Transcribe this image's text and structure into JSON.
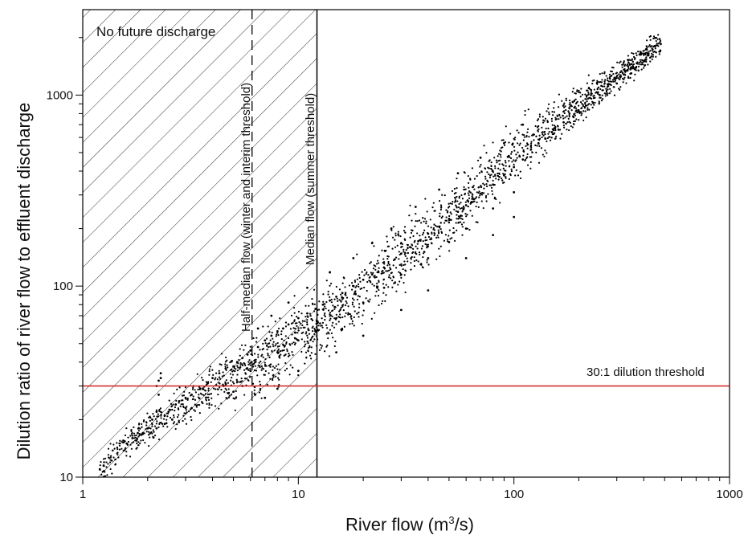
{
  "chart_data": {
    "type": "scatter",
    "title": "",
    "xlabel": "River flow (m",
    "xlabel_sup": "3",
    "xlabel_tail": "/s)",
    "ylabel": "Dilution ratio of river flow to effluent discharge",
    "x_scale": "log",
    "y_scale": "log",
    "xlim": [
      1,
      1000
    ],
    "ylim": [
      10,
      2800
    ],
    "x_ticks": [
      1,
      10,
      100,
      1000
    ],
    "x_tick_labels": [
      "1",
      "10",
      "100",
      "1000"
    ],
    "y_ticks": [
      10,
      100,
      1000
    ],
    "y_tick_labels": [
      "10",
      "100",
      "1000"
    ],
    "grid": false,
    "hatched_zone": {
      "x_from": 1,
      "x_to": 12.2,
      "label": "No future discharge"
    },
    "reference_lines": [
      {
        "orientation": "vertical",
        "x": 6.1,
        "style": "dashed",
        "color": "#000000",
        "label": "Half-median flow (winter and interim threshold)"
      },
      {
        "orientation": "vertical",
        "x": 12.2,
        "style": "solid",
        "color": "#000000",
        "label": "Median flow (summer threshold)"
      },
      {
        "orientation": "horizontal",
        "y": 30,
        "style": "solid",
        "color": "#d42020",
        "label": "30:1 dilution threshold"
      }
    ],
    "point_color": "#000000",
    "trend_points": {
      "x": [
        1.2,
        1.5,
        2,
        3,
        5,
        8,
        12,
        20,
        30,
        50,
        80,
        120,
        200,
        480
      ],
      "y": [
        11,
        14,
        18,
        24,
        33,
        45,
        63,
        95,
        140,
        230,
        380,
        580,
        900,
        1850
      ]
    },
    "series": [
      {
        "name": "",
        "x": [
          1.2,
          1.25,
          1.6,
          1.7,
          1.8,
          1.9,
          2.0,
          2.1,
          2.2,
          2.25,
          2.3,
          2.4,
          2.5,
          2.7,
          2.8,
          3.0,
          3.2,
          3.5,
          3.8,
          4.0,
          4.3,
          4.6,
          5.0,
          5.2,
          5.5,
          5.8,
          6.0,
          6.5,
          7.0,
          7.5,
          8.0,
          8.5,
          9.0,
          10,
          11,
          12,
          13,
          14,
          15,
          16,
          18,
          20,
          22,
          25,
          28,
          30,
          33,
          36,
          40,
          45,
          50,
          55,
          60,
          65,
          70,
          80,
          90,
          100,
          110,
          120,
          130,
          150,
          170,
          200,
          250,
          300,
          350,
          400,
          480,
          2.2,
          2.3,
          2.25,
          5.0,
          5.5,
          6.3,
          7.0,
          8.0,
          10,
          15,
          20,
          30,
          40,
          60,
          80,
          100,
          3.2,
          4.5,
          6.0,
          8.0,
          10,
          12,
          15,
          20,
          25,
          30,
          40,
          50,
          60,
          80,
          100,
          6.5,
          7.5,
          9.0,
          11,
          14,
          18,
          22,
          27,
          35,
          45,
          55,
          70,
          90,
          110,
          2.6,
          3.0,
          2.2,
          2.4
        ],
        "y": [
          11,
          11.5,
          15,
          16,
          17,
          17,
          18,
          20,
          22,
          32,
          35,
          21,
          22,
          24,
          25,
          26,
          27,
          29,
          31,
          33,
          35,
          37,
          38,
          40,
          42,
          44,
          46,
          48,
          52,
          55,
          58,
          60,
          63,
          68,
          72,
          76,
          80,
          84,
          88,
          92,
          100,
          108,
          115,
          125,
          138,
          148,
          160,
          172,
          188,
          205,
          225,
          245,
          265,
          285,
          305,
          340,
          380,
          420,
          460,
          520,
          560,
          640,
          720,
          820,
          1000,
          1150,
          1300,
          1500,
          1850,
          30,
          33,
          27,
          28,
          30,
          27,
          26,
          29,
          36,
          45,
          55,
          75,
          95,
          140,
          185,
          230,
          23,
          30,
          36,
          45,
          52,
          58,
          68,
          82,
          98,
          115,
          140,
          170,
          200,
          255,
          310,
          60,
          70,
          82,
          98,
          118,
          140,
          168,
          200,
          260,
          320,
          390,
          470,
          560,
          700,
          20,
          23,
          18,
          19
        ]
      }
    ]
  }
}
